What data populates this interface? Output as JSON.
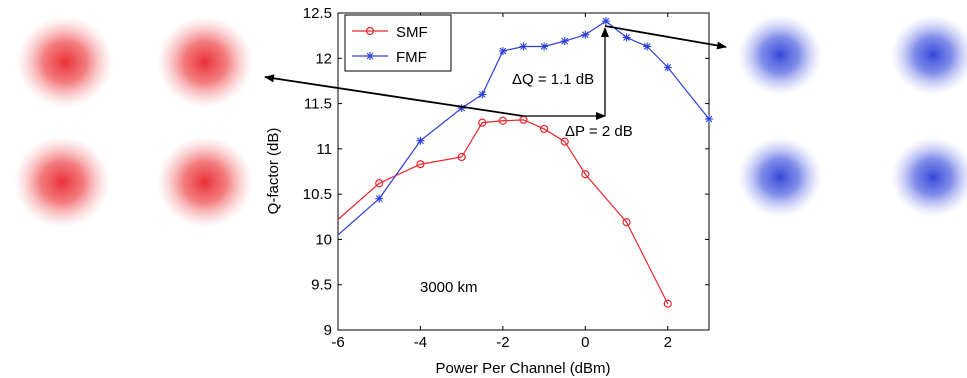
{
  "chart_data": {
    "type": "line",
    "xlabel": "Power Per Channel (dBm)",
    "ylabel": "Q-factor (dB)",
    "xlim": [
      -6,
      3
    ],
    "ylim": [
      9,
      12.5
    ],
    "xticks": [
      "-6",
      "-4",
      "-2",
      "0",
      "2"
    ],
    "yticks": [
      "9",
      "9.5",
      "10",
      "10.5",
      "11",
      "11.5",
      "12",
      "12.5"
    ],
    "grid": false,
    "legend_position": "top-left",
    "series": [
      {
        "name": "SMF",
        "color": "#e8262b",
        "marker": "circle",
        "x": [
          -6,
          -5,
          -4,
          -3,
          -2.5,
          -2,
          -1.5,
          -1,
          -0.5,
          0,
          1,
          2
        ],
        "y": [
          10.22,
          10.62,
          10.83,
          10.91,
          11.29,
          11.31,
          11.32,
          11.22,
          11.08,
          10.72,
          10.19,
          9.29
        ]
      },
      {
        "name": "FMF",
        "color": "#2b3fd6",
        "marker": "star",
        "x": [
          -6,
          -5,
          -4,
          -3,
          -2.5,
          -2,
          -1.5,
          -1,
          -0.5,
          0,
          0.5,
          1,
          1.5,
          2,
          3
        ],
        "y": [
          10.05,
          10.45,
          11.09,
          11.45,
          11.6,
          12.08,
          12.13,
          12.13,
          12.19,
          12.26,
          12.41,
          12.23,
          12.13,
          11.9,
          11.33
        ]
      }
    ],
    "annotations": {
      "delta_q": "ΔQ = 1.1 dB",
      "delta_p": "ΔP = 2 dB",
      "distance": "3000 km"
    }
  },
  "constellations": {
    "left_color": "#e8262b",
    "right_color": "#2b3fd6"
  }
}
